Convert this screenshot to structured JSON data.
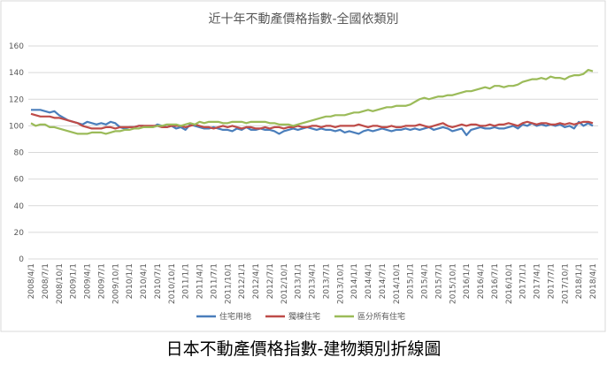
{
  "chart_data": {
    "type": "line",
    "title": "近十年不動產價格指數-全國依類別",
    "caption": "日本不動產價格指數-建物類別折線圖",
    "categories": [
      "2008/4/1",
      null,
      null,
      "2008/7/1",
      null,
      null,
      "2008/10/1",
      null,
      null,
      "2009/1/1",
      null,
      null,
      "2009/4/1",
      null,
      null,
      "2009/7/1",
      null,
      null,
      "2009/10/1",
      null,
      null,
      "2010/1/1",
      null,
      null,
      "2010/4/1",
      null,
      null,
      "2010/7/1",
      null,
      null,
      "2010/10/1",
      null,
      null,
      "2011/1/1",
      null,
      null,
      "2011/4/1",
      null,
      null,
      "2011/7/1",
      null,
      null,
      "2011/10/1",
      null,
      null,
      "2012/1/1",
      null,
      null,
      "2012/4/1",
      null,
      null,
      "2012/7/1",
      null,
      null,
      "2012/10/1",
      null,
      null,
      "2013/1/1",
      null,
      null,
      "2013/4/1",
      null,
      null,
      "2013/7/1",
      null,
      null,
      "2013/10/1",
      null,
      null,
      "2014/1/1",
      null,
      null,
      "2014/4/1",
      null,
      null,
      "2014/7/1",
      null,
      null,
      "2014/10/1",
      null,
      null,
      "2015/1/1",
      null,
      null,
      "2015/4/1",
      null,
      null,
      "2015/7/1",
      null,
      null,
      "2015/10/1",
      null,
      null,
      "2016/1/1",
      null,
      null,
      "2016/4/1",
      null,
      null,
      "2016/7/1",
      null,
      null,
      "2016/10/1",
      null,
      null,
      "2017/1/1",
      null,
      null,
      "2017/4/1",
      null,
      null,
      "2017/7/1",
      null,
      null,
      "2017/10/1",
      null,
      null,
      "2018/1/1",
      null,
      null,
      "2018/4/1"
    ],
    "series": [
      {
        "name": "住宅用地",
        "color": "#4a7ebb",
        "values": [
          112,
          112,
          112,
          111,
          110,
          111,
          108,
          106,
          104,
          103,
          102,
          101,
          103,
          102,
          101,
          102,
          101,
          103,
          102,
          99,
          98,
          99,
          99,
          100,
          100,
          99,
          99,
          101,
          100,
          99,
          100,
          98,
          99,
          97,
          101,
          100,
          99,
          98,
          98,
          99,
          98,
          97,
          97,
          96,
          98,
          97,
          99,
          97,
          97,
          98,
          97,
          97,
          96,
          94,
          96,
          97,
          98,
          97,
          98,
          99,
          98,
          97,
          98,
          97,
          97,
          96,
          97,
          95,
          96,
          95,
          94,
          96,
          97,
          96,
          97,
          98,
          97,
          96,
          97,
          97,
          98,
          97,
          98,
          97,
          98,
          99,
          97,
          98,
          99,
          98,
          96,
          97,
          98,
          93,
          97,
          98,
          99,
          98,
          98,
          99,
          98,
          98,
          99,
          100,
          98,
          101,
          100,
          102,
          100,
          101,
          100,
          101,
          100,
          101,
          99,
          100,
          98,
          103,
          100,
          102,
          100
        ]
      },
      {
        "name": "獨棟住宅",
        "color": "#be4b48",
        "values": [
          109,
          108,
          107,
          107,
          107,
          106,
          106,
          105,
          104,
          103,
          102,
          100,
          99,
          98,
          98,
          98,
          99,
          99,
          98,
          99,
          99,
          99,
          99,
          100,
          100,
          100,
          100,
          100,
          99,
          99,
          100,
          100,
          100,
          99,
          100,
          101,
          100,
          99,
          99,
          98,
          99,
          100,
          99,
          100,
          99,
          98,
          99,
          99,
          98,
          98,
          99,
          98,
          99,
          99,
          98,
          99,
          99,
          100,
          99,
          99,
          100,
          100,
          99,
          100,
          100,
          99,
          100,
          100,
          100,
          100,
          101,
          100,
          99,
          100,
          100,
          99,
          99,
          100,
          99,
          99,
          100,
          100,
          100,
          101,
          100,
          99,
          100,
          101,
          102,
          100,
          99,
          100,
          101,
          100,
          101,
          101,
          100,
          100,
          101,
          100,
          101,
          101,
          102,
          101,
          100,
          102,
          103,
          102,
          101,
          102,
          102,
          101,
          101,
          102,
          101,
          102,
          101,
          102,
          103,
          103,
          102
        ]
      },
      {
        "name": "區分所有住宅",
        "color": "#9bbb59",
        "values": [
          102,
          100,
          101,
          101,
          99,
          99,
          98,
          97,
          96,
          95,
          94,
          94,
          94,
          95,
          95,
          95,
          94,
          95,
          96,
          96,
          97,
          97,
          98,
          98,
          99,
          99,
          99,
          100,
          100,
          101,
          101,
          101,
          100,
          101,
          102,
          101,
          103,
          102,
          103,
          103,
          103,
          102,
          102,
          103,
          103,
          103,
          102,
          103,
          103,
          103,
          103,
          102,
          102,
          101,
          101,
          101,
          100,
          101,
          102,
          103,
          104,
          105,
          106,
          107,
          107,
          108,
          108,
          108,
          109,
          110,
          110,
          111,
          112,
          111,
          112,
          113,
          114,
          114,
          115,
          115,
          115,
          116,
          118,
          120,
          121,
          120,
          121,
          122,
          122,
          123,
          123,
          124,
          125,
          126,
          126,
          127,
          128,
          129,
          128,
          130,
          130,
          129,
          130,
          130,
          131,
          133,
          134,
          135,
          135,
          136,
          135,
          137,
          136,
          136,
          135,
          137,
          138,
          138,
          139,
          142,
          141
        ]
      }
    ],
    "ylim": [
      0,
      160
    ],
    "yticks": [
      0,
      20,
      40,
      60,
      80,
      100,
      120,
      140,
      160
    ],
    "grid": true,
    "legend": "bottom"
  }
}
